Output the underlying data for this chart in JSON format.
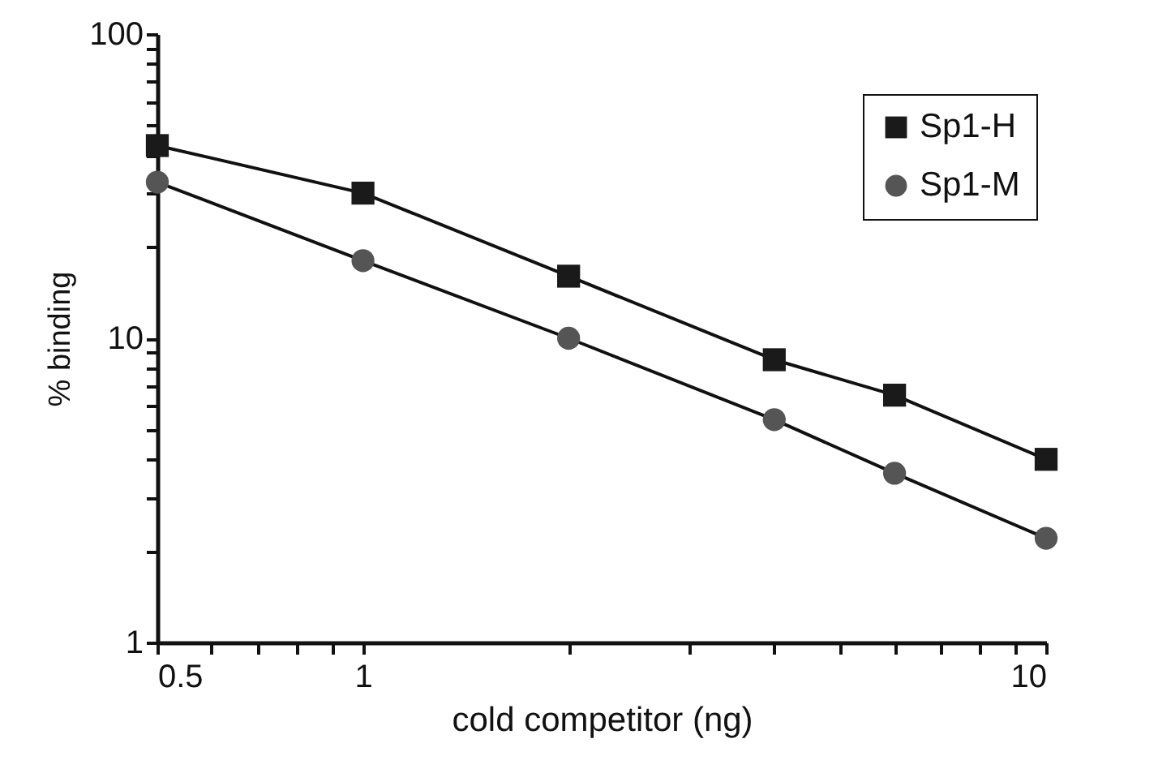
{
  "chart_data": {
    "type": "line",
    "xlabel": "cold competitor (ng)",
    "ylabel": "% binding",
    "log": "xy",
    "x": [
      0.5,
      1,
      2,
      4,
      6,
      10
    ],
    "series": [
      {
        "name": "Sp1-H",
        "color": "#1a1a1a",
        "marker": "square",
        "values": [
          43,
          30,
          16,
          8.5,
          6.5,
          4.0
        ]
      },
      {
        "name": "Sp1-M",
        "color": "#555555",
        "marker": "circle",
        "values": [
          32.6,
          18,
          10,
          5.4,
          3.6,
          2.2
        ]
      }
    ],
    "xlim": [
      0.5,
      10
    ],
    "ylim": [
      1,
      100
    ],
    "xticks": [
      0.5,
      {
        "value": 0.6,
        "label": null
      },
      {
        "value": 0.7,
        "label": null
      },
      {
        "value": 0.8,
        "label": null
      },
      {
        "value": 0.9,
        "label": null
      },
      1,
      {
        "value": 2,
        "label": null
      },
      {
        "value": 3,
        "label": null
      },
      {
        "value": 4,
        "label": null
      },
      {
        "value": 5,
        "label": null
      },
      {
        "value": 6,
        "label": null
      },
      {
        "value": 7,
        "label": null
      },
      {
        "value": 8,
        "label": null
      },
      {
        "value": 9,
        "label": null
      },
      10
    ],
    "yticks": [
      1,
      {
        "value": 2,
        "label": null
      },
      {
        "value": 3,
        "label": null
      },
      {
        "value": 4,
        "label": null
      },
      {
        "value": 5,
        "label": null
      },
      {
        "value": 6,
        "label": null
      },
      {
        "value": 7,
        "label": null
      },
      {
        "value": 8,
        "label": null
      },
      {
        "value": 9,
        "label": null
      },
      10,
      {
        "value": 20,
        "label": null
      },
      {
        "value": 30,
        "label": null
      },
      {
        "value": 40,
        "label": null
      },
      {
        "value": 50,
        "label": null
      },
      {
        "value": 60,
        "label": null
      },
      {
        "value": 70,
        "label": null
      },
      {
        "value": 80,
        "label": null
      },
      {
        "value": 90,
        "label": null
      },
      100
    ],
    "grid": false,
    "legend": "top right"
  }
}
